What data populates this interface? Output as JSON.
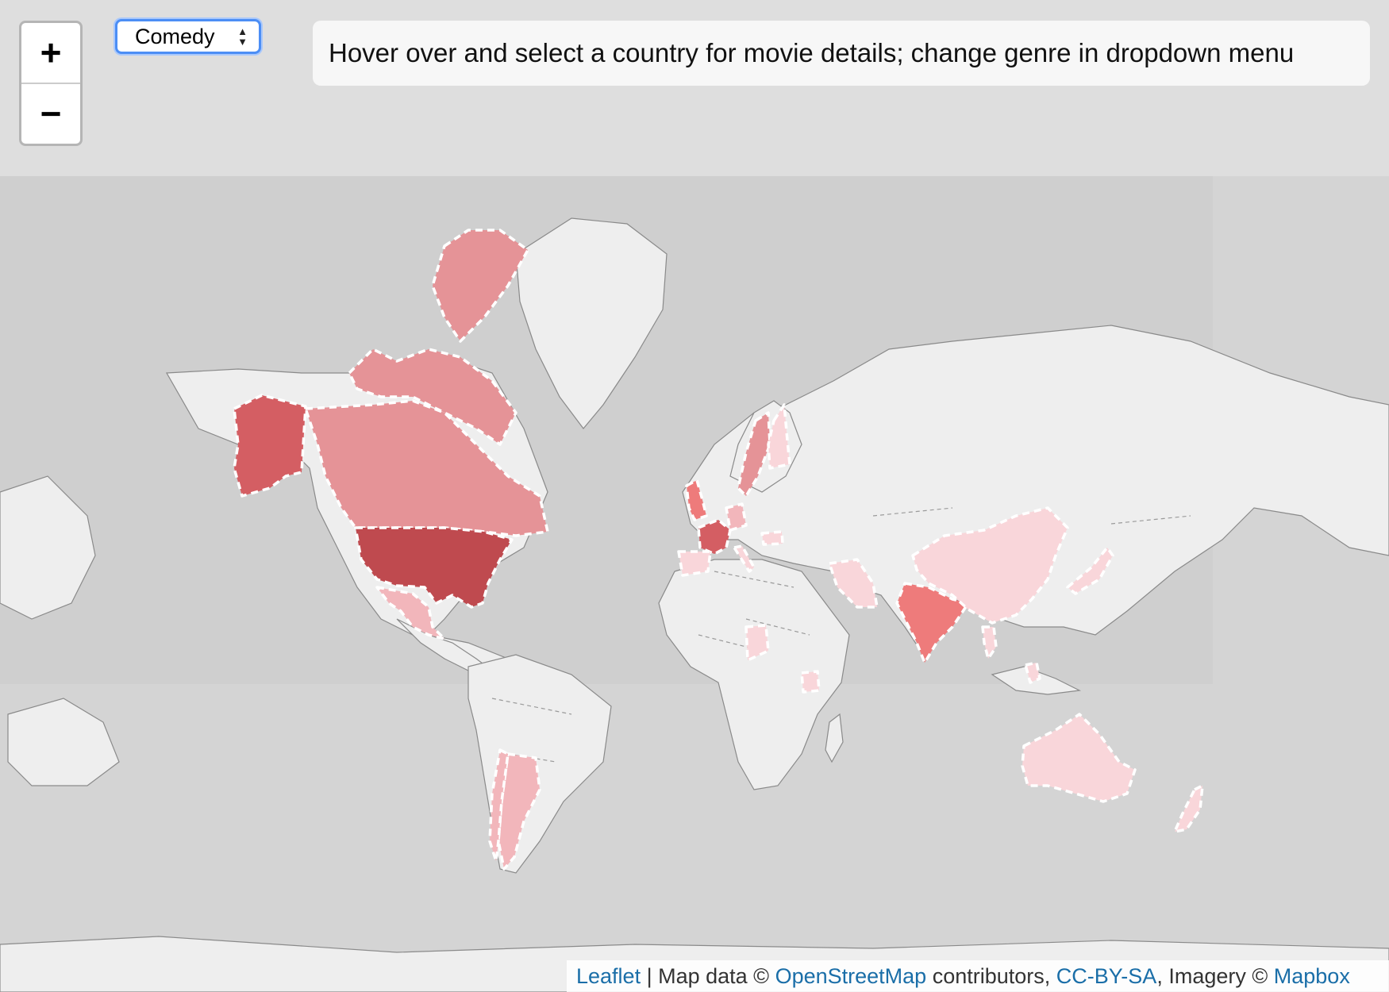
{
  "controls": {
    "zoom_in_label": "+",
    "zoom_out_label": "−",
    "genre_selected": "Comedy",
    "genre_arrows_up": "▲",
    "genre_arrows_down": "▼"
  },
  "info": {
    "text": "Hover over and select a country for movie details; change genre in dropdown menu"
  },
  "attribution": {
    "leaflet": "Leaflet",
    "sep": " | ",
    "map_data": "Map data © ",
    "osm": "OpenStreetMap",
    "contributors": " contributors, ",
    "license": "CC-BY-SA",
    "imagery": ", Imagery © ",
    "mapbox": "Mapbox"
  },
  "colors": {
    "ocean": "#d4d4d4",
    "land": "#eeeeee",
    "shade_darkest": "#bf4a4f",
    "shade_dark": "#d45e63",
    "shade_medium": "#ee7b7b",
    "shade_light": "#e59397",
    "shade_pale": "#f2b6bb",
    "shade_palest": "#f9d6da",
    "highlight_outline": "#ffffff"
  },
  "map": {
    "genre": "Comedy",
    "highlighted_countries": [
      {
        "id": "usa",
        "shade": "shade_darkest"
      },
      {
        "id": "alaska",
        "shade": "shade_dark"
      },
      {
        "id": "france",
        "shade": "shade_dark"
      },
      {
        "id": "uk",
        "shade": "shade_medium"
      },
      {
        "id": "india",
        "shade": "shade_medium"
      },
      {
        "id": "canada",
        "shade": "shade_light"
      },
      {
        "id": "sweden",
        "shade": "shade_light"
      },
      {
        "id": "germany",
        "shade": "shade_pale"
      },
      {
        "id": "mexico",
        "shade": "shade_pale"
      },
      {
        "id": "argentina",
        "shade": "shade_pale"
      },
      {
        "id": "chile",
        "shade": "shade_pale"
      },
      {
        "id": "spain",
        "shade": "shade_palest"
      },
      {
        "id": "finland",
        "shade": "shade_palest"
      },
      {
        "id": "iran",
        "shade": "shade_palest"
      },
      {
        "id": "china",
        "shade": "shade_palest"
      },
      {
        "id": "japan",
        "shade": "shade_palest"
      },
      {
        "id": "australia",
        "shade": "shade_palest"
      },
      {
        "id": "new-zealand",
        "shade": "shade_palest"
      },
      {
        "id": "nigeria",
        "shade": "shade_palest"
      },
      {
        "id": "tanzania",
        "shade": "shade_palest"
      },
      {
        "id": "thailand",
        "shade": "shade_palest"
      },
      {
        "id": "philippines",
        "shade": "shade_palest"
      },
      {
        "id": "hungary",
        "shade": "shade_palest"
      },
      {
        "id": "italy",
        "shade": "shade_palest"
      }
    ]
  }
}
